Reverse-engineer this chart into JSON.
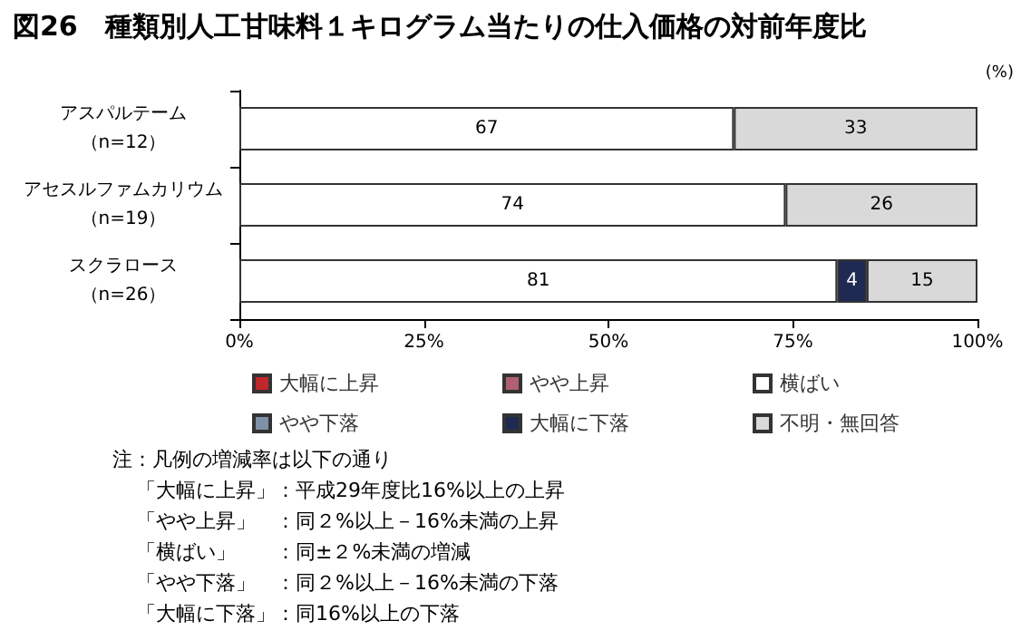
{
  "chart_data": {
    "type": "bar",
    "orientation": "horizontal",
    "stacked": true,
    "title": "図26　種類別人工甘味料１キログラム当たりの仕入価格の対前年度比",
    "xlabel": "(%)",
    "categories": [
      "アスパルテーム（n=12）",
      "アセスルファムカリウム（n=19）",
      "スクラロース（n=26）"
    ],
    "series": [
      {
        "name": "大幅に上昇",
        "color": "#c0272d",
        "values": [
          null,
          null,
          null
        ]
      },
      {
        "name": "やや上昇",
        "color": "#b06070",
        "values": [
          null,
          null,
          null
        ]
      },
      {
        "name": "横ばい",
        "color": "#ffffff",
        "values": [
          67,
          74,
          81
        ]
      },
      {
        "name": "やや下落",
        "color": "#8090a8",
        "values": [
          null,
          null,
          null
        ]
      },
      {
        "name": "大幅に下落",
        "color": "#1f2a52",
        "values": [
          null,
          null,
          4
        ]
      },
      {
        "name": "不明・無回答",
        "color": "#d9d9d9",
        "values": [
          33,
          26,
          15
        ]
      }
    ],
    "xlim": [
      0,
      100
    ],
    "xticks": [
      {
        "value": 0,
        "label": "0%"
      },
      {
        "value": 25,
        "label": "25%"
      },
      {
        "value": 50,
        "label": "50%"
      },
      {
        "value": 75,
        "label": "75%"
      },
      {
        "value": 100,
        "label": "100%"
      }
    ],
    "data_labels": true,
    "grid": false,
    "legend": "bottom",
    "annotations": [
      "注：凡例の増減率は以下の通り",
      "「大幅に上昇」：平成29年度比16%以上の上昇",
      "「やや上昇」　：同２%以上－16%未満の上昇",
      "「横ばい」　　：同±２%未満の増減",
      "「やや下落」　：同２%以上－16%未満の下落",
      "「大幅に下落」：同16%以上の下落"
    ]
  }
}
